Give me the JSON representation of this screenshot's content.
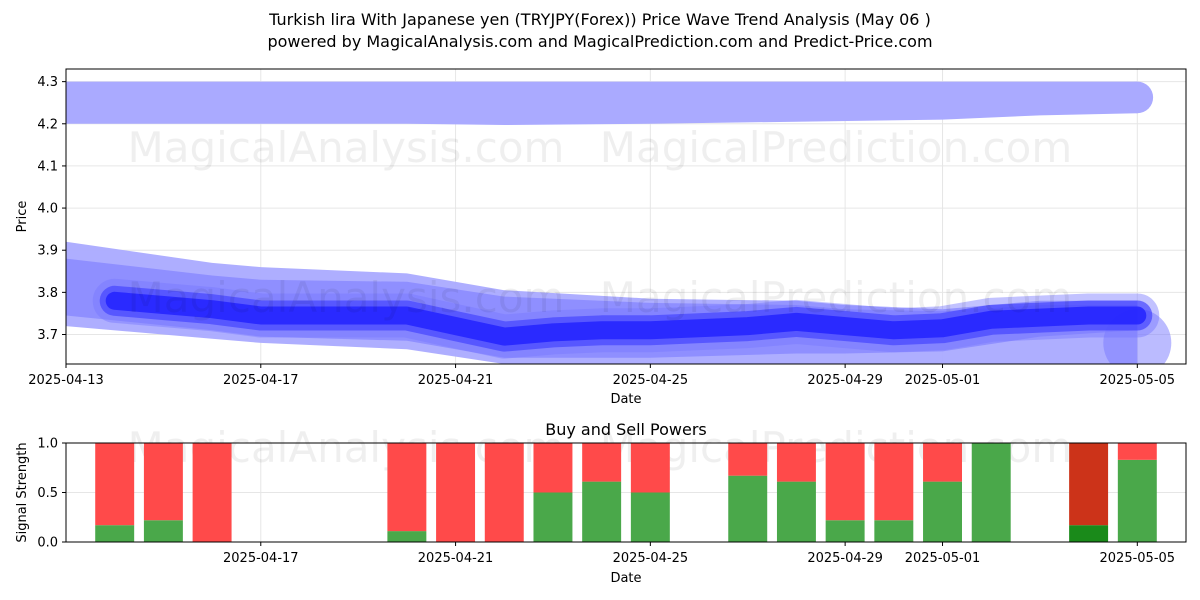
{
  "header": {
    "title_line1": "Turkish lira With Japanese yen (TRYJPY(Forex)) Price Wave Trend Analysis (May 06 )",
    "title_line2": "powered by MagicalAnalysis.com and MagicalPrediction.com and Predict-Price.com"
  },
  "watermarks": [
    "MagicalAnalysis.com",
    "MagicalPrediction.com"
  ],
  "colors": {
    "band_light": "#aaaaff",
    "band_mid": "#7777ff",
    "band_core": "#2222ff",
    "buy": "#4aa84a",
    "sell": "#ff4a4a",
    "buy_strong": "#1a8a1a",
    "sell_strong": "#cc3319"
  },
  "chart_data": [
    {
      "type": "area",
      "title": "",
      "xlabel": "Date",
      "ylabel": "Price",
      "ylim": [
        3.63,
        4.33
      ],
      "xlim": [
        "2025-04-13",
        "2025-05-06"
      ],
      "x_ticks": [
        "2025-04-13",
        "2025-04-17",
        "2025-04-21",
        "2025-04-25",
        "2025-04-29",
        "2025-05-01",
        "2025-05-05"
      ],
      "y_ticks": [
        "3.7",
        "3.8",
        "3.9",
        "4.0",
        "4.1",
        "4.2",
        "4.3"
      ],
      "grid": true,
      "series": [
        {
          "role": "upper-band",
          "dates": [
            "2025-04-13",
            "2025-04-17",
            "2025-04-20",
            "2025-04-22",
            "2025-04-25",
            "2025-04-28",
            "2025-05-01",
            "2025-05-03",
            "2025-05-05"
          ],
          "lower": [
            4.2,
            4.2,
            4.2,
            4.197,
            4.2,
            4.205,
            4.21,
            4.22,
            4.225
          ],
          "upper": [
            4.3,
            4.3,
            4.3,
            4.3,
            4.3,
            4.3,
            4.3,
            4.3,
            4.3
          ]
        },
        {
          "role": "outer-band",
          "dates": [
            "2025-04-13",
            "2025-04-16",
            "2025-04-17",
            "2025-04-20",
            "2025-04-22",
            "2025-04-25",
            "2025-04-28",
            "2025-04-29",
            "2025-05-01",
            "2025-05-03",
            "2025-05-05"
          ],
          "upper": [
            3.92,
            3.87,
            3.86,
            3.845,
            3.805,
            3.785,
            3.78,
            3.77,
            3.76,
            3.78,
            3.78
          ],
          "lower": [
            3.72,
            3.69,
            3.68,
            3.665,
            3.63,
            3.63,
            3.63,
            3.63,
            3.63,
            3.63,
            3.63
          ]
        },
        {
          "role": "mid-band",
          "dates": [
            "2025-04-13",
            "2025-04-16",
            "2025-04-17",
            "2025-04-20",
            "2025-04-22",
            "2025-04-25",
            "2025-04-28",
            "2025-04-29",
            "2025-05-01",
            "2025-05-03",
            "2025-05-05"
          ],
          "upper": [
            3.88,
            3.84,
            3.83,
            3.825,
            3.79,
            3.775,
            3.77,
            3.76,
            3.755,
            3.77,
            3.77
          ],
          "lower": [
            3.745,
            3.71,
            3.695,
            3.685,
            3.645,
            3.645,
            3.655,
            3.655,
            3.66,
            3.695,
            3.71
          ]
        },
        {
          "role": "core-wave",
          "dates": [
            "2025-04-14",
            "2025-04-15",
            "2025-04-16",
            "2025-04-17",
            "2025-04-18",
            "2025-04-20",
            "2025-04-21",
            "2025-04-22",
            "2025-04-23",
            "2025-04-24",
            "2025-04-25",
            "2025-04-26",
            "2025-04-27",
            "2025-04-28",
            "2025-04-29",
            "2025-04-30",
            "2025-05-01",
            "2025-05-02",
            "2025-05-03",
            "2025-05-04",
            "2025-05-05"
          ],
          "values": [
            3.78,
            3.77,
            3.76,
            3.745,
            3.745,
            3.745,
            3.72,
            3.695,
            3.705,
            3.71,
            3.71,
            3.715,
            3.72,
            3.73,
            3.72,
            3.71,
            3.715,
            3.735,
            3.74,
            3.745,
            3.745
          ]
        }
      ]
    },
    {
      "type": "bar",
      "title": "Buy and Sell Powers",
      "xlabel": "Date",
      "ylabel": "Signal Strength",
      "ylim": [
        0,
        1.0
      ],
      "xlim": [
        "2025-04-13",
        "2025-05-06"
      ],
      "x_ticks": [
        "2025-04-17",
        "2025-04-21",
        "2025-04-25",
        "2025-04-29",
        "2025-05-01",
        "2025-05-05"
      ],
      "y_ticks": [
        "0.0",
        "0.5",
        "1.0"
      ],
      "grid": true,
      "categories": [
        "2025-04-14",
        "2025-04-15",
        "2025-04-16",
        "2025-04-20",
        "2025-04-21",
        "2025-04-22",
        "2025-04-23",
        "2025-04-24",
        "2025-04-25",
        "2025-04-27",
        "2025-04-28",
        "2025-04-29",
        "2025-04-30",
        "2025-05-01",
        "2025-05-02",
        "2025-05-04",
        "2025-05-05"
      ],
      "series": [
        {
          "name": "Buy",
          "values": [
            0.17,
            0.22,
            0.0,
            0.11,
            0.0,
            0.0,
            0.5,
            0.61,
            0.5,
            0.67,
            0.61,
            0.22,
            0.22,
            0.61,
            1.0,
            0.17,
            0.83
          ]
        },
        {
          "name": "Sell",
          "values": [
            0.83,
            0.78,
            1.0,
            0.89,
            1.0,
            1.0,
            0.5,
            0.39,
            0.5,
            0.33,
            0.39,
            0.78,
            0.78,
            0.39,
            0.0,
            0.83,
            0.17
          ]
        }
      ],
      "strong_index": 15
    }
  ]
}
